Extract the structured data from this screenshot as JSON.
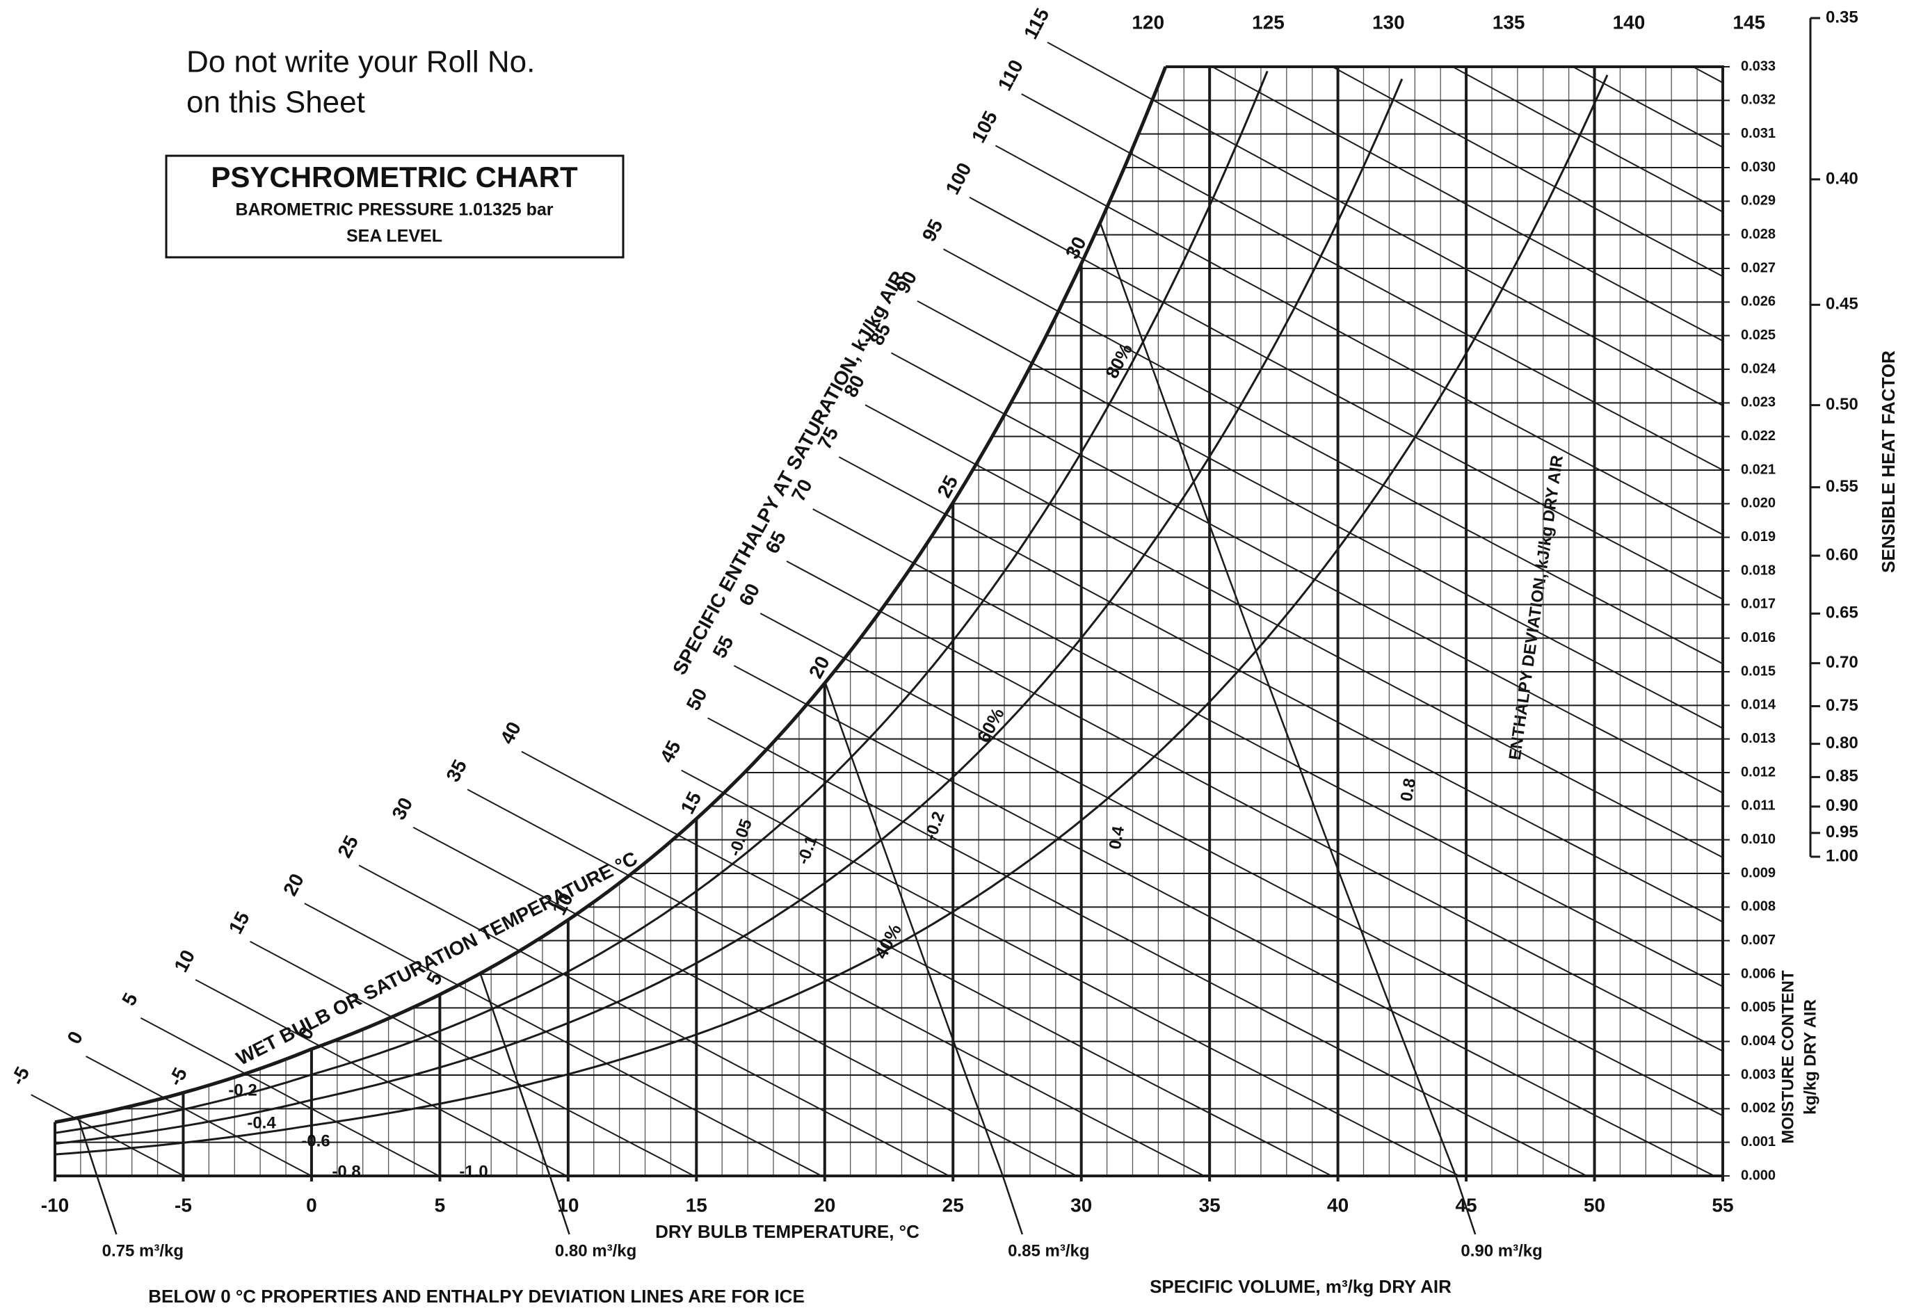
{
  "chart_data": {
    "type": "psychrometric",
    "notice": [
      "Do not write your Roll No.",
      "on this Sheet"
    ],
    "title": "PSYCHROMETRIC CHART",
    "subtitle": [
      "BAROMETRIC PRESSURE 1.01325 bar",
      "SEA LEVEL"
    ],
    "x_label": "DRY BULB TEMPERATURE, °C",
    "y_label": [
      "MOISTURE CONTENT",
      "kg/kg DRY AIR"
    ],
    "enthalpy_label": "SPECIFIC ENTHALPY AT SATURATION, kJ/kg AIR",
    "wet_bulb_label": "WET BULB OR SATURATION TEMPERATURE °C",
    "deviation_label": "ENTHALPY DEVIATION, kJ/kg DRY AIR",
    "volume_label": "SPECIFIC VOLUME, m³/kg DRY AIR",
    "shf_label": "SENSIBLE HEAT FACTOR",
    "footnote": "BELOW 0 °C PROPERTIES AND ENTHALPY DEVIATION LINES ARE FOR ICE",
    "xlim": [
      -10,
      55
    ],
    "xticks": [
      -10,
      -5,
      0,
      5,
      10,
      15,
      20,
      25,
      30,
      35,
      40,
      45,
      50,
      55
    ],
    "ylim": [
      0,
      0.033
    ],
    "yticks": [
      {
        "value": 0,
        "label": "0.000"
      },
      0.001,
      0.002,
      0.003,
      0.004,
      0.005,
      0.006,
      0.007,
      0.008,
      0.009,
      {
        "value": 0.01,
        "label": "0.010"
      },
      0.011,
      0.012,
      0.013,
      0.014,
      0.015,
      0.016,
      0.017,
      0.018,
      0.019,
      {
        "value": 0.02,
        "label": "0.020"
      },
      0.021,
      0.022,
      0.023,
      0.024,
      0.025,
      0.026,
      0.027,
      0.028,
      0.029,
      {
        "value": 0.03,
        "label": "0.030"
      },
      0.031,
      0.032,
      0.033
    ],
    "enthalpy_lines": [
      -5,
      0,
      5,
      10,
      15,
      20,
      25,
      30,
      35,
      40,
      45,
      50,
      55,
      60,
      65,
      70,
      75,
      80,
      85,
      90,
      95,
      100,
      105,
      110,
      115
    ],
    "enthalpy_top": [
      120,
      125,
      130,
      135,
      140,
      145
    ],
    "wet_bulb_ticks": [
      -5,
      0,
      5,
      10,
      15,
      20,
      25,
      30
    ],
    "rh_lines": [
      {
        "value": 40,
        "label": "40%"
      },
      {
        "value": 60,
        "label": "60%"
      },
      {
        "value": 80,
        "label": "80%"
      }
    ],
    "volume_lines": [
      {
        "value": 0.75,
        "label": "0.75 m³/kg"
      },
      {
        "value": 0.8,
        "label": "0.80 m³/kg"
      },
      {
        "value": 0.85,
        "label": "0.85 m³/kg"
      },
      {
        "value": 0.9,
        "label": "0.90 m³/kg"
      }
    ],
    "enthalpy_deviation_labels": [
      -0.05,
      -0.1,
      -0.2,
      -0.2,
      -0.4,
      -0.6,
      -0.8,
      {
        "value": -1,
        "label": "-1.0"
      },
      0.4,
      0.8
    ],
    "shf_lim": [
      0.35,
      1
    ],
    "shf_ticks": [
      0.35,
      {
        "value": 0.4,
        "label": "0.40"
      },
      0.45,
      {
        "value": 0.5,
        "label": "0.50"
      },
      0.55,
      {
        "value": 0.6,
        "label": "0.60"
      },
      0.65,
      {
        "value": 0.7,
        "label": "0.70"
      },
      0.75,
      {
        "value": 0.8,
        "label": "0.80"
      },
      0.85,
      {
        "value": 0.9,
        "label": "0.90"
      },
      0.95,
      {
        "value": 1,
        "label": "1.00"
      }
    ],
    "grid": true,
    "color": "#1a1a1a"
  }
}
